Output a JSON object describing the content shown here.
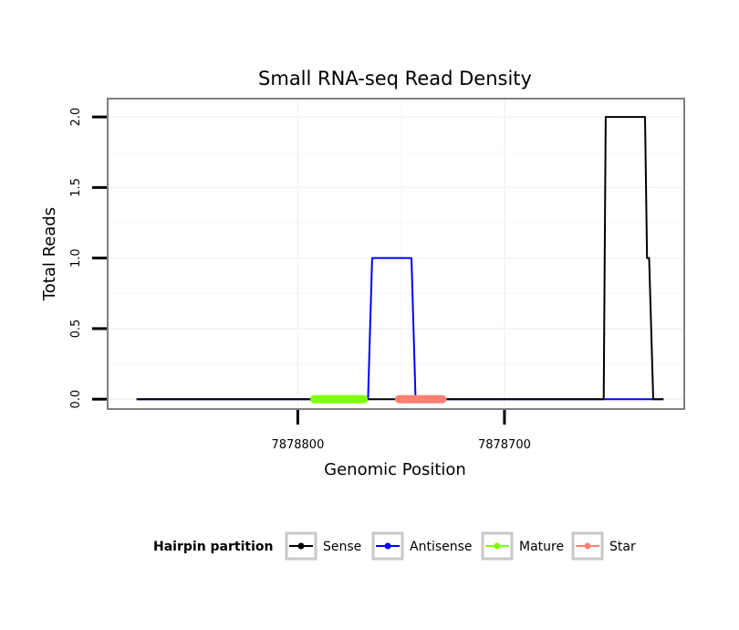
{
  "chart_data": {
    "type": "line",
    "title": "Small RNA-seq Read Density",
    "xlabel": "Genomic Position",
    "ylabel": "Total Reads",
    "xlim": [
      7878892,
      7878613
    ],
    "ylim": [
      -0.07,
      2.13
    ],
    "x_reversed": true,
    "x_ticks": [
      7878800,
      7878700
    ],
    "x_tick_labels": [
      "7878800",
      "7878700"
    ],
    "y_ticks": [
      0,
      0.5,
      1,
      1.5,
      2
    ],
    "y_tick_labels": [
      "0.0",
      "0.5",
      "1.0",
      "1.5",
      "2.0"
    ],
    "grid": true,
    "legend": {
      "title": "Hairpin partition",
      "position": "bottom",
      "entries": [
        {
          "key": "sense",
          "label": "Sense",
          "color": "#000000"
        },
        {
          "key": "antisense",
          "label": "Antisense",
          "color": "#0000ff"
        },
        {
          "key": "mature",
          "label": "Mature",
          "color": "#7fff00"
        },
        {
          "key": "star",
          "label": "Star",
          "color": "#fa8072"
        }
      ]
    },
    "series": [
      {
        "name": "Antisense",
        "key": "antisense",
        "color": "#0000ff",
        "points": [
          [
            7878878,
            0
          ],
          [
            7878766,
            0
          ],
          [
            7878764,
            1
          ],
          [
            7878745,
            1
          ],
          [
            7878743,
            0
          ],
          [
            7878623,
            0
          ]
        ]
      },
      {
        "name": "Sense",
        "key": "sense",
        "color": "#000000",
        "points": [
          [
            7878878,
            0
          ],
          [
            7878652,
            0
          ],
          [
            7878651,
            2
          ],
          [
            7878632,
            2
          ],
          [
            7878631,
            1
          ],
          [
            7878630,
            1
          ],
          [
            7878628,
            0
          ],
          [
            7878623,
            0
          ]
        ]
      },
      {
        "name": "Mature",
        "key": "mature",
        "color": "#7fff00",
        "thick": true,
        "points": [
          [
            7878792,
            0
          ],
          [
            7878768,
            0
          ]
        ]
      },
      {
        "name": "Star",
        "key": "star",
        "color": "#fa8072",
        "thick": true,
        "points": [
          [
            7878751,
            0
          ],
          [
            7878730,
            0
          ]
        ]
      }
    ]
  }
}
